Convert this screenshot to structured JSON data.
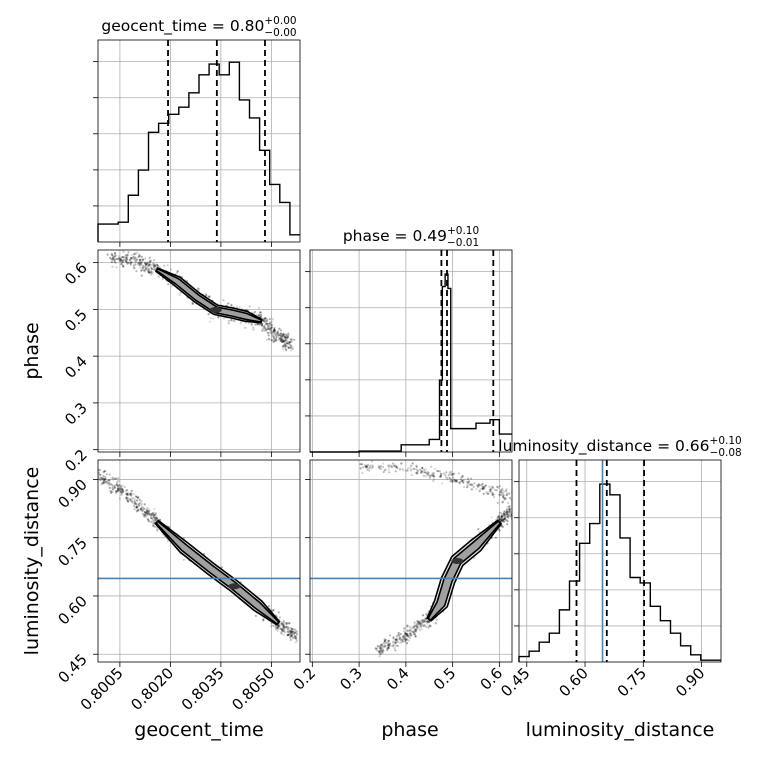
{
  "chart_data": {
    "type": "corner",
    "parameters": [
      "geocent_time",
      "phase",
      "luminosity_distance"
    ],
    "axis_labels": {
      "geocent_time": "geocent_time",
      "phase": "phase",
      "luminosity_distance": "luminosity_distance"
    },
    "ranges": {
      "geocent_time": [
        0.79985,
        0.80585
      ],
      "phase": [
        0.195,
        0.627
      ],
      "luminosity_distance": [
        0.43,
        0.95
      ]
    },
    "ticks": {
      "geocent_time": [
        {
          "v": 0.8005,
          "label": "0.8005"
        },
        {
          "v": 0.802,
          "label": "0.8020"
        },
        {
          "v": 0.8035,
          "label": "0.8035"
        },
        {
          "v": 0.805,
          "label": "0.8050"
        }
      ],
      "phase": [
        {
          "v": 0.2,
          "label": "0.2"
        },
        {
          "v": 0.3,
          "label": "0.3"
        },
        {
          "v": 0.4,
          "label": "0.4"
        },
        {
          "v": 0.5,
          "label": "0.5"
        },
        {
          "v": 0.6,
          "label": "0.6"
        }
      ],
      "luminosity_distance": [
        {
          "v": 0.45,
          "label": "0.45"
        },
        {
          "v": 0.6,
          "label": "0.60"
        },
        {
          "v": 0.75,
          "label": "0.75"
        },
        {
          "v": 0.9,
          "label": "0.90"
        }
      ]
    },
    "titles": {
      "geocent_time": {
        "name": "geocent_time",
        "median": "0.80",
        "plus": "+0.00",
        "minus": "−0.00"
      },
      "phase": {
        "name": "phase",
        "median": "0.49",
        "plus": "+0.10",
        "minus": "−0.01"
      },
      "luminosity_distance": {
        "name": "luminosity_distance",
        "median": "0.66",
        "plus": "+0.10",
        "minus": "−0.08"
      }
    },
    "quantiles": {
      "geocent_time": [
        0.80193,
        0.80338,
        0.80481
      ],
      "phase": [
        0.476,
        0.488,
        0.587
      ],
      "luminosity_distance": [
        0.578,
        0.656,
        0.752
      ]
    },
    "truths": {
      "geocent_time": null,
      "phase": null,
      "luminosity_distance": 0.645
    },
    "histograms": {
      "geocent_time": {
        "edges": [
          0.79985,
          0.80015,
          0.80045,
          0.80075,
          0.80105,
          0.80135,
          0.80165,
          0.80195,
          0.80225,
          0.80255,
          0.80285,
          0.80315,
          0.80345,
          0.80375,
          0.80405,
          0.80435,
          0.80465,
          0.80495,
          0.80525,
          0.80555,
          0.80585
        ],
        "counts": [
          0.1,
          0.1,
          0.11,
          0.26,
          0.4,
          0.61,
          0.66,
          0.71,
          0.75,
          0.83,
          0.93,
          0.99,
          0.93,
          1.0,
          0.79,
          0.69,
          0.51,
          0.32,
          0.22,
          0.04
        ]
      },
      "phase": {
        "edges": [
          0.195,
          0.3,
          0.33,
          0.36,
          0.39,
          0.42,
          0.45,
          0.472,
          0.478,
          0.484,
          0.49,
          0.496,
          0.52,
          0.55,
          0.58,
          0.6,
          0.627
        ],
        "counts": [
          0.0,
          0.005,
          0.005,
          0.005,
          0.04,
          0.04,
          0.07,
          0.4,
          0.92,
          0.99,
          0.91,
          0.13,
          0.13,
          0.16,
          0.18,
          0.1
        ]
      },
      "luminosity_distance": {
        "edges": [
          0.43,
          0.456,
          0.482,
          0.508,
          0.534,
          0.56,
          0.586,
          0.612,
          0.638,
          0.664,
          0.69,
          0.716,
          0.742,
          0.768,
          0.794,
          0.82,
          0.846,
          0.872,
          0.898,
          0.924,
          0.95
        ],
        "counts": [
          0.03,
          0.06,
          0.11,
          0.16,
          0.29,
          0.45,
          0.66,
          0.77,
          0.99,
          0.93,
          0.69,
          0.47,
          0.44,
          0.31,
          0.23,
          0.16,
          0.09,
          0.04,
          0.01,
          0.01
        ]
      }
    },
    "scatter_2d": {
      "phase_vs_geocent_time": {
        "x_param": "geocent_time",
        "y_param": "phase",
        "ridge": [
          [
            0.80025,
            0.612
          ],
          [
            0.801,
            0.603
          ],
          [
            0.8016,
            0.585
          ],
          [
            0.8022,
            0.56
          ],
          [
            0.8028,
            0.525
          ],
          [
            0.80335,
            0.499
          ],
          [
            0.80385,
            0.492
          ],
          [
            0.80425,
            0.485
          ],
          [
            0.8047,
            0.475
          ],
          [
            0.8052,
            0.445
          ],
          [
            0.8056,
            0.42
          ]
        ]
      },
      "luminosity_distance_vs_geocent_time": {
        "x_param": "geocent_time",
        "y_param": "luminosity_distance",
        "ridge": [
          [
            0.7999,
            0.91
          ],
          [
            0.8008,
            0.855
          ],
          [
            0.8016,
            0.79
          ],
          [
            0.8024,
            0.725
          ],
          [
            0.8032,
            0.67
          ],
          [
            0.8039,
            0.625
          ],
          [
            0.8046,
            0.575
          ],
          [
            0.8052,
            0.53
          ],
          [
            0.80575,
            0.495
          ]
        ]
      },
      "luminosity_distance_vs_phase": {
        "x_param": "phase",
        "y_param": "luminosity_distance",
        "ridge": [
          [
            0.34,
            0.46
          ],
          [
            0.4,
            0.5
          ],
          [
            0.45,
            0.54
          ],
          [
            0.475,
            0.58
          ],
          [
            0.49,
            0.64
          ],
          [
            0.51,
            0.69
          ],
          [
            0.55,
            0.73
          ],
          [
            0.6,
            0.79
          ],
          [
            0.627,
            0.82
          ]
        ],
        "ridge_upper": [
          [
            0.3,
            0.935
          ],
          [
            0.42,
            0.925
          ],
          [
            0.5,
            0.905
          ],
          [
            0.57,
            0.875
          ],
          [
            0.627,
            0.855
          ]
        ]
      }
    },
    "grid": true
  }
}
